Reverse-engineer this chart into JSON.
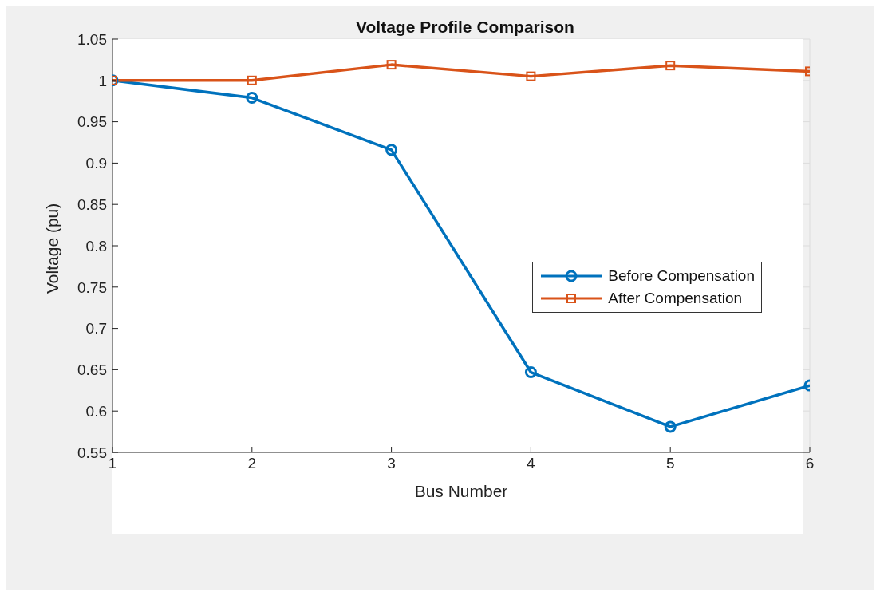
{
  "chart_data": {
    "type": "line",
    "title": "Voltage Profile Comparison",
    "xlabel": "Bus Number",
    "ylabel": "Voltage (pu)",
    "x": [
      1,
      2,
      3,
      4,
      5,
      6
    ],
    "series": [
      {
        "name": "Before Compensation",
        "color": "#0072bd",
        "marker": "circle",
        "values": [
          1.0,
          0.979,
          0.916,
          0.647,
          0.581,
          0.631
        ]
      },
      {
        "name": "After Compensation",
        "color": "#d95319",
        "marker": "square",
        "values": [
          1.0,
          1.0,
          1.019,
          1.005,
          1.018,
          1.011
        ]
      }
    ],
    "xlim": [
      1,
      6
    ],
    "xticks": [
      1,
      2,
      3,
      4,
      5,
      6
    ],
    "ylim": [
      0.55,
      1.05
    ],
    "yticks": [
      0.55,
      0.6,
      0.65,
      0.7,
      0.75,
      0.8,
      0.85,
      0.9,
      0.95,
      1,
      1.05
    ],
    "grid": true,
    "legend": "right",
    "line_style": "solid"
  }
}
